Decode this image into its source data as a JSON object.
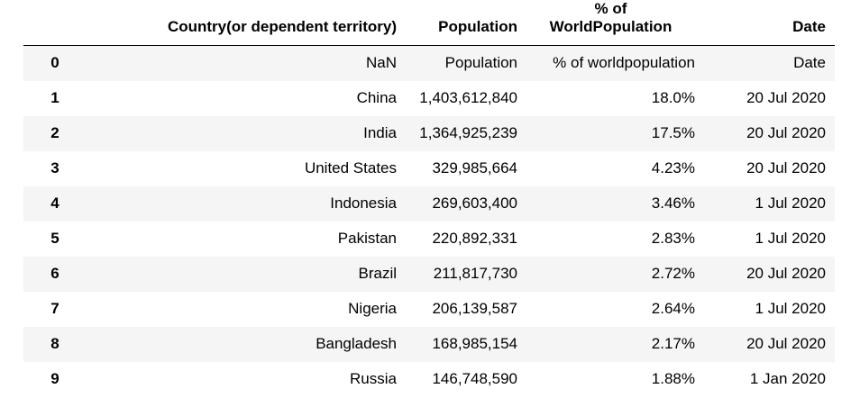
{
  "table": {
    "columns": [
      "",
      "Country(or dependent territory)",
      "Population",
      "% of WorldPopulation",
      "Date"
    ],
    "pct_header_lines": [
      "% of",
      "WorldPopulation"
    ],
    "rows": [
      {
        "index": "0",
        "country": "NaN",
        "population": "Population",
        "pct": "% of worldpopulation",
        "date": "Date"
      },
      {
        "index": "1",
        "country": "China",
        "population": "1,403,612,840",
        "pct": "18.0%",
        "date": "20 Jul 2020"
      },
      {
        "index": "2",
        "country": "India",
        "population": "1,364,925,239",
        "pct": "17.5%",
        "date": "20 Jul 2020"
      },
      {
        "index": "3",
        "country": "United States",
        "population": "329,985,664",
        "pct": "4.23%",
        "date": "20 Jul 2020"
      },
      {
        "index": "4",
        "country": "Indonesia",
        "population": "269,603,400",
        "pct": "3.46%",
        "date": "1 Jul 2020"
      },
      {
        "index": "5",
        "country": "Pakistan",
        "population": "220,892,331",
        "pct": "2.83%",
        "date": "1 Jul 2020"
      },
      {
        "index": "6",
        "country": "Brazil",
        "population": "211,817,730",
        "pct": "2.72%",
        "date": "20 Jul 2020"
      },
      {
        "index": "7",
        "country": "Nigeria",
        "population": "206,139,587",
        "pct": "2.64%",
        "date": "1 Jul 2020"
      },
      {
        "index": "8",
        "country": "Bangladesh",
        "population": "168,985,154",
        "pct": "2.17%",
        "date": "20 Jul 2020"
      },
      {
        "index": "9",
        "country": "Russia",
        "population": "146,748,590",
        "pct": "1.88%",
        "date": "1 Jan 2020"
      }
    ]
  },
  "colors": {
    "stripe": "#f5f5f5",
    "background": "#ffffff",
    "text": "#000000",
    "header_rule": "#000000"
  }
}
